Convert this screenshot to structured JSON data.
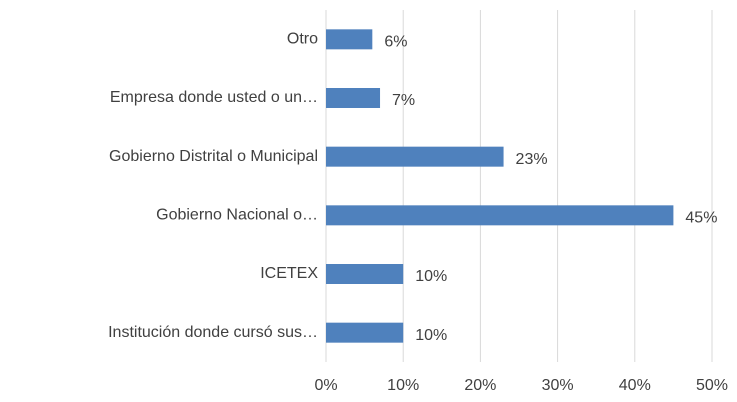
{
  "chart_data": {
    "type": "bar",
    "orientation": "horizontal",
    "categories": [
      "Otro",
      "Empresa donde usted o un…",
      "Gobierno Distrital o Municipal",
      "Gobierno Nacional o…",
      "ICETEX",
      "Institución donde cursó sus…"
    ],
    "values": [
      6,
      7,
      23,
      45,
      10,
      10
    ],
    "value_labels": [
      "6%",
      "7%",
      "23%",
      "45%",
      "10%",
      "10%"
    ],
    "color": "#4f81bd",
    "xlim": [
      0,
      50
    ],
    "xticks": [
      {
        "value": 0,
        "label": "0%"
      },
      {
        "value": 10,
        "label": "10%"
      },
      {
        "value": 20,
        "label": "20%"
      },
      {
        "value": 30,
        "label": "30%"
      },
      {
        "value": 40,
        "label": "40%"
      },
      {
        "value": 50,
        "label": "50%"
      }
    ],
    "grid": true
  }
}
